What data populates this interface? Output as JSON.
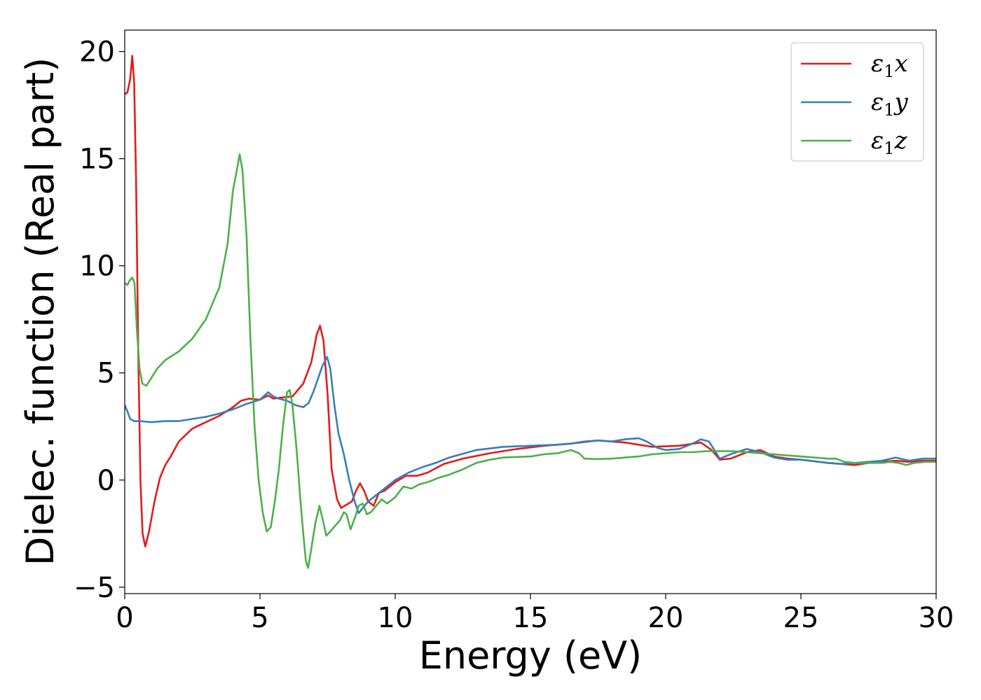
{
  "chart_data": {
    "type": "line",
    "title": "",
    "xlabel": "Energy (eV)",
    "ylabel": "Dielec. function (Real part)",
    "xlim": [
      0,
      30
    ],
    "ylim": [
      -5.3,
      21
    ],
    "xticks": [
      0,
      5,
      10,
      15,
      20,
      25,
      30
    ],
    "yticks": [
      -5,
      0,
      5,
      10,
      15,
      20
    ],
    "xtick_labels": [
      "0",
      "5",
      "10",
      "15",
      "20",
      "25",
      "30"
    ],
    "ytick_labels": [
      "−5",
      "0",
      "5",
      "10",
      "15",
      "20"
    ],
    "grid": false,
    "legend_position": "top-right",
    "series": [
      {
        "name": "ε₁x",
        "legend": {
          "symbol": "ε",
          "sub": "1",
          "axis": "x"
        },
        "color": "#e41a1c",
        "points": [
          [
            0,
            18
          ],
          [
            0.1,
            18.1
          ],
          [
            0.2,
            18.7
          ],
          [
            0.28,
            19.8
          ],
          [
            0.35,
            18.5
          ],
          [
            0.42,
            14
          ],
          [
            0.5,
            6
          ],
          [
            0.58,
            0
          ],
          [
            0.66,
            -2.5
          ],
          [
            0.76,
            -3.1
          ],
          [
            0.9,
            -2.4
          ],
          [
            1.1,
            -1.0
          ],
          [
            1.3,
            0.1
          ],
          [
            1.5,
            0.7
          ],
          [
            1.7,
            1.1
          ],
          [
            2.0,
            1.8
          ],
          [
            2.5,
            2.4
          ],
          [
            3.0,
            2.7
          ],
          [
            3.5,
            3.0
          ],
          [
            4.0,
            3.4
          ],
          [
            4.3,
            3.7
          ],
          [
            4.6,
            3.8
          ],
          [
            5.0,
            3.75
          ],
          [
            5.3,
            3.95
          ],
          [
            5.5,
            3.8
          ],
          [
            5.8,
            3.85
          ],
          [
            6.2,
            3.9
          ],
          [
            6.6,
            4.5
          ],
          [
            6.9,
            5.5
          ],
          [
            7.1,
            6.8
          ],
          [
            7.22,
            7.2
          ],
          [
            7.35,
            6.5
          ],
          [
            7.5,
            4.0
          ],
          [
            7.65,
            0.5
          ],
          [
            7.85,
            -0.9
          ],
          [
            8.0,
            -1.3
          ],
          [
            8.2,
            -1.15
          ],
          [
            8.4,
            -1.0
          ],
          [
            8.55,
            -0.5
          ],
          [
            8.7,
            -0.15
          ],
          [
            8.85,
            -0.5
          ],
          [
            9.0,
            -1.0
          ],
          [
            9.2,
            -1.2
          ],
          [
            9.4,
            -0.6
          ],
          [
            9.6,
            -0.5
          ],
          [
            10.0,
            -0.1
          ],
          [
            10.4,
            0.2
          ],
          [
            10.8,
            0.2
          ],
          [
            11.2,
            0.35
          ],
          [
            11.8,
            0.75
          ],
          [
            12.5,
            1.0
          ],
          [
            13.5,
            1.25
          ],
          [
            14.5,
            1.45
          ],
          [
            15.5,
            1.6
          ],
          [
            16.5,
            1.7
          ],
          [
            17.5,
            1.85
          ],
          [
            18.5,
            1.75
          ],
          [
            19.5,
            1.55
          ],
          [
            20.5,
            1.6
          ],
          [
            21.3,
            1.75
          ],
          [
            21.7,
            1.4
          ],
          [
            22.0,
            0.95
          ],
          [
            22.4,
            1.0
          ],
          [
            23.0,
            1.3
          ],
          [
            23.5,
            1.4
          ],
          [
            24.0,
            1.1
          ],
          [
            24.5,
            1.0
          ],
          [
            25.0,
            0.95
          ],
          [
            26.0,
            0.8
          ],
          [
            26.5,
            0.75
          ],
          [
            27.0,
            0.7
          ],
          [
            27.5,
            0.8
          ],
          [
            28.0,
            0.85
          ],
          [
            28.5,
            0.9
          ],
          [
            29.0,
            0.85
          ],
          [
            29.5,
            0.9
          ],
          [
            30.0,
            0.9
          ]
        ]
      },
      {
        "name": "ε₁y",
        "legend": {
          "symbol": "ε",
          "sub": "1",
          "axis": "y"
        },
        "color": "#377eb8",
        "points": [
          [
            0,
            3.5
          ],
          [
            0.1,
            3.2
          ],
          [
            0.2,
            2.85
          ],
          [
            0.35,
            2.75
          ],
          [
            0.6,
            2.75
          ],
          [
            0.8,
            2.72
          ],
          [
            1.0,
            2.7
          ],
          [
            1.5,
            2.75
          ],
          [
            2.0,
            2.75
          ],
          [
            2.5,
            2.85
          ],
          [
            3.0,
            2.95
          ],
          [
            3.5,
            3.1
          ],
          [
            4.0,
            3.3
          ],
          [
            4.5,
            3.55
          ],
          [
            5.0,
            3.75
          ],
          [
            5.3,
            4.1
          ],
          [
            5.5,
            3.9
          ],
          [
            5.7,
            3.8
          ],
          [
            6.0,
            3.7
          ],
          [
            6.3,
            3.5
          ],
          [
            6.6,
            3.4
          ],
          [
            6.8,
            3.6
          ],
          [
            7.0,
            4.2
          ],
          [
            7.3,
            5.3
          ],
          [
            7.48,
            5.75
          ],
          [
            7.6,
            5.2
          ],
          [
            7.75,
            3.5
          ],
          [
            7.9,
            2.2
          ],
          [
            8.1,
            1.2
          ],
          [
            8.3,
            0.0
          ],
          [
            8.5,
            -1.0
          ],
          [
            8.65,
            -1.55
          ],
          [
            8.8,
            -1.3
          ],
          [
            9.0,
            -1.0
          ],
          [
            9.3,
            -0.7
          ],
          [
            9.6,
            -0.4
          ],
          [
            10.0,
            0.0
          ],
          [
            10.5,
            0.35
          ],
          [
            11.0,
            0.6
          ],
          [
            11.5,
            0.8
          ],
          [
            12.0,
            1.05
          ],
          [
            13.0,
            1.4
          ],
          [
            14.0,
            1.55
          ],
          [
            15.0,
            1.6
          ],
          [
            16.0,
            1.65
          ],
          [
            16.5,
            1.7
          ],
          [
            17.0,
            1.8
          ],
          [
            17.5,
            1.85
          ],
          [
            18.0,
            1.8
          ],
          [
            18.5,
            1.9
          ],
          [
            19.0,
            1.95
          ],
          [
            19.3,
            1.8
          ],
          [
            19.7,
            1.5
          ],
          [
            20.0,
            1.4
          ],
          [
            20.5,
            1.45
          ],
          [
            21.0,
            1.7
          ],
          [
            21.3,
            1.9
          ],
          [
            21.6,
            1.8
          ],
          [
            22.0,
            1.0
          ],
          [
            22.5,
            1.25
          ],
          [
            23.0,
            1.45
          ],
          [
            23.5,
            1.3
          ],
          [
            24.0,
            1.05
          ],
          [
            24.5,
            0.95
          ],
          [
            25.0,
            0.95
          ],
          [
            26.0,
            0.8
          ],
          [
            26.5,
            0.75
          ],
          [
            27.0,
            0.8
          ],
          [
            27.5,
            0.85
          ],
          [
            28.0,
            0.9
          ],
          [
            28.5,
            1.05
          ],
          [
            29.0,
            0.9
          ],
          [
            29.5,
            1.0
          ],
          [
            30.0,
            1.0
          ]
        ]
      },
      {
        "name": "ε₁z",
        "legend": {
          "symbol": "ε",
          "sub": "1",
          "axis": "z"
        },
        "color": "#4daf4a",
        "points": [
          [
            0,
            9.2
          ],
          [
            0.1,
            9.1
          ],
          [
            0.18,
            9.3
          ],
          [
            0.28,
            9.45
          ],
          [
            0.36,
            9.2
          ],
          [
            0.45,
            7.0
          ],
          [
            0.55,
            5.2
          ],
          [
            0.65,
            4.5
          ],
          [
            0.8,
            4.4
          ],
          [
            1.0,
            4.8
          ],
          [
            1.2,
            5.2
          ],
          [
            1.5,
            5.6
          ],
          [
            2.0,
            6.0
          ],
          [
            2.5,
            6.6
          ],
          [
            3.0,
            7.5
          ],
          [
            3.5,
            9.0
          ],
          [
            3.8,
            11.0
          ],
          [
            4.0,
            13.5
          ],
          [
            4.15,
            14.5
          ],
          [
            4.25,
            15.2
          ],
          [
            4.35,
            14.5
          ],
          [
            4.5,
            11.5
          ],
          [
            4.65,
            6.5
          ],
          [
            4.8,
            2.5
          ],
          [
            4.95,
            0.0
          ],
          [
            5.1,
            -1.5
          ],
          [
            5.25,
            -2.4
          ],
          [
            5.4,
            -2.2
          ],
          [
            5.55,
            -1.0
          ],
          [
            5.7,
            0.5
          ],
          [
            5.85,
            2.5
          ],
          [
            6.0,
            4.1
          ],
          [
            6.1,
            4.2
          ],
          [
            6.2,
            3.5
          ],
          [
            6.35,
            1.5
          ],
          [
            6.5,
            -1.0
          ],
          [
            6.6,
            -2.5
          ],
          [
            6.7,
            -3.8
          ],
          [
            6.78,
            -4.1
          ],
          [
            6.9,
            -3.2
          ],
          [
            7.05,
            -2.0
          ],
          [
            7.2,
            -1.2
          ],
          [
            7.35,
            -2.0
          ],
          [
            7.45,
            -2.6
          ],
          [
            7.6,
            -2.4
          ],
          [
            7.8,
            -2.1
          ],
          [
            7.95,
            -1.9
          ],
          [
            8.1,
            -1.5
          ],
          [
            8.2,
            -1.6
          ],
          [
            8.35,
            -2.3
          ],
          [
            8.5,
            -1.8
          ],
          [
            8.65,
            -1.2
          ],
          [
            8.8,
            -1.1
          ],
          [
            8.95,
            -1.6
          ],
          [
            9.1,
            -1.5
          ],
          [
            9.3,
            -1.2
          ],
          [
            9.5,
            -0.9
          ],
          [
            9.7,
            -1.1
          ],
          [
            10.0,
            -0.8
          ],
          [
            10.3,
            -0.3
          ],
          [
            10.6,
            -0.4
          ],
          [
            10.9,
            -0.2
          ],
          [
            11.2,
            -0.1
          ],
          [
            11.6,
            0.1
          ],
          [
            12.0,
            0.25
          ],
          [
            12.5,
            0.5
          ],
          [
            13.0,
            0.8
          ],
          [
            13.5,
            0.95
          ],
          [
            14.0,
            1.05
          ],
          [
            15.0,
            1.1
          ],
          [
            15.5,
            1.2
          ],
          [
            16.0,
            1.25
          ],
          [
            16.5,
            1.4
          ],
          [
            16.8,
            1.25
          ],
          [
            17.0,
            1.0
          ],
          [
            17.5,
            0.98
          ],
          [
            18.0,
            1.0
          ],
          [
            18.5,
            1.05
          ],
          [
            19.0,
            1.1
          ],
          [
            19.5,
            1.2
          ],
          [
            20.0,
            1.25
          ],
          [
            20.5,
            1.3
          ],
          [
            21.0,
            1.3
          ],
          [
            21.5,
            1.35
          ],
          [
            22.0,
            1.35
          ],
          [
            22.5,
            1.35
          ],
          [
            23.0,
            1.3
          ],
          [
            23.5,
            1.25
          ],
          [
            24.0,
            1.2
          ],
          [
            24.5,
            1.15
          ],
          [
            25.0,
            1.1
          ],
          [
            25.5,
            1.05
          ],
          [
            26.0,
            1.0
          ],
          [
            26.3,
            1.0
          ],
          [
            26.6,
            0.85
          ],
          [
            27.0,
            0.8
          ],
          [
            27.5,
            0.8
          ],
          [
            28.0,
            0.8
          ],
          [
            28.3,
            0.85
          ],
          [
            28.6,
            0.8
          ],
          [
            28.9,
            0.7
          ],
          [
            29.2,
            0.8
          ],
          [
            29.6,
            0.85
          ],
          [
            30.0,
            0.85
          ]
        ]
      }
    ]
  }
}
